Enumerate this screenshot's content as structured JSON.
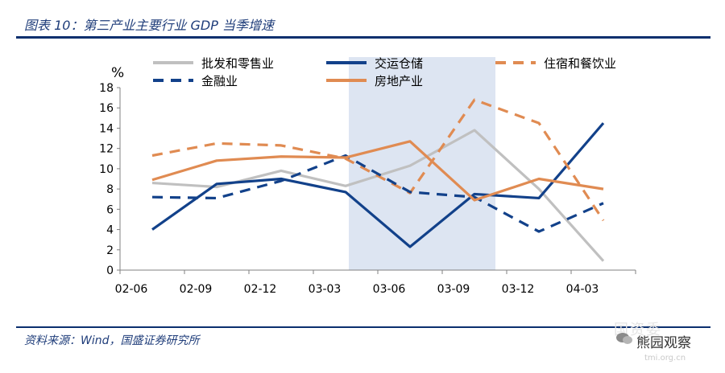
{
  "figure": {
    "title": "图表 10：第三产业主要行业 GDP 当季增速",
    "source": "资料来源：Wind，国盛证券研究所",
    "watermark_brand": "熊园观察",
    "watermark_url": "tmi.org.cn"
  },
  "chart_data": {
    "type": "line",
    "unit_label": "%",
    "categories": [
      "02-06",
      "02-09",
      "02-12",
      "03-03",
      "03-06",
      "03-09",
      "03-12",
      "04-03"
    ],
    "ylim": [
      0,
      18
    ],
    "yticks": [
      0,
      2,
      4,
      6,
      8,
      10,
      12,
      14,
      16,
      18
    ],
    "grid": false,
    "legend_placement": "top",
    "highlight_range": [
      "03-03",
      "03-09"
    ],
    "highlight_color": "#dde5f2",
    "series": [
      {
        "name": "批发和零售业",
        "values": [
          8.6,
          8.2,
          9.8,
          8.3,
          10.3,
          13.8,
          8.0,
          0.9
        ],
        "color": "#c0c0c0",
        "dash": "solid"
      },
      {
        "name": "交运仓储",
        "values": [
          4.0,
          8.5,
          9.0,
          7.7,
          2.3,
          7.5,
          7.1,
          14.5
        ],
        "color": "#12418a",
        "dash": "solid"
      },
      {
        "name": "住宿和餐饮业",
        "values": [
          11.3,
          12.5,
          12.3,
          11.0,
          7.6,
          16.8,
          14.5,
          4.9
        ],
        "color": "#e08b52",
        "dash": "dashed"
      },
      {
        "name": "金融业",
        "values": [
          7.2,
          7.1,
          8.8,
          11.3,
          7.7,
          7.2,
          3.8,
          6.6
        ],
        "color": "#12418a",
        "dash": "dashed"
      },
      {
        "name": "房地产业",
        "values": [
          8.9,
          10.8,
          11.2,
          11.1,
          12.7,
          6.9,
          9.0,
          8.0
        ],
        "color": "#e08b52",
        "dash": "solid"
      }
    ]
  }
}
